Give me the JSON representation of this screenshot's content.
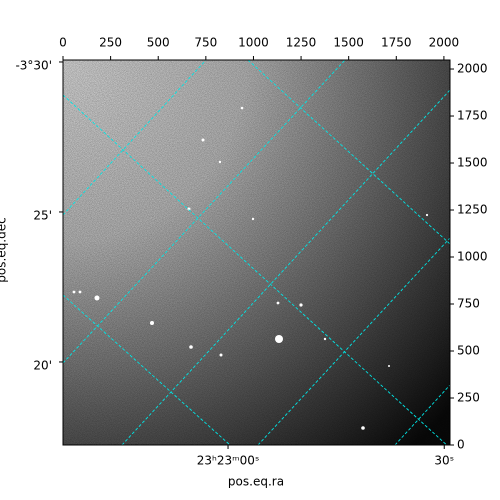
{
  "chart_data": {
    "type": "image",
    "xlabel": "pos.eq.ra",
    "ylabel": "pos.eq.dec",
    "xlim": [
      0,
      2032
    ],
    "xticks": [
      0,
      250,
      500,
      750,
      1000,
      1250,
      1500,
      1750,
      2000
    ],
    "ylim": [
      0,
      2048
    ],
    "yticks": [
      0,
      250,
      500,
      750,
      1000,
      1250,
      1500,
      1750,
      2000
    ],
    "ra_lim": [
      -22.9,
      30.8
    ],
    "ra_ticks": [
      {
        "value": 0,
        "label": "23ʰ23ᵐ00ˢ"
      },
      {
        "value": 30,
        "label": "30ˢ"
      }
    ],
    "dec_lim": [
      -3.5011,
      -3.2872
    ],
    "dec_ticks": [
      {
        "value": -3.5,
        "label": "-3°30'"
      },
      {
        "value": -3.41667,
        "label": "25'"
      },
      {
        "value": -3.33333,
        "label": "20'"
      }
    ],
    "grid": true,
    "grid_color": "#00e5e5"
  }
}
